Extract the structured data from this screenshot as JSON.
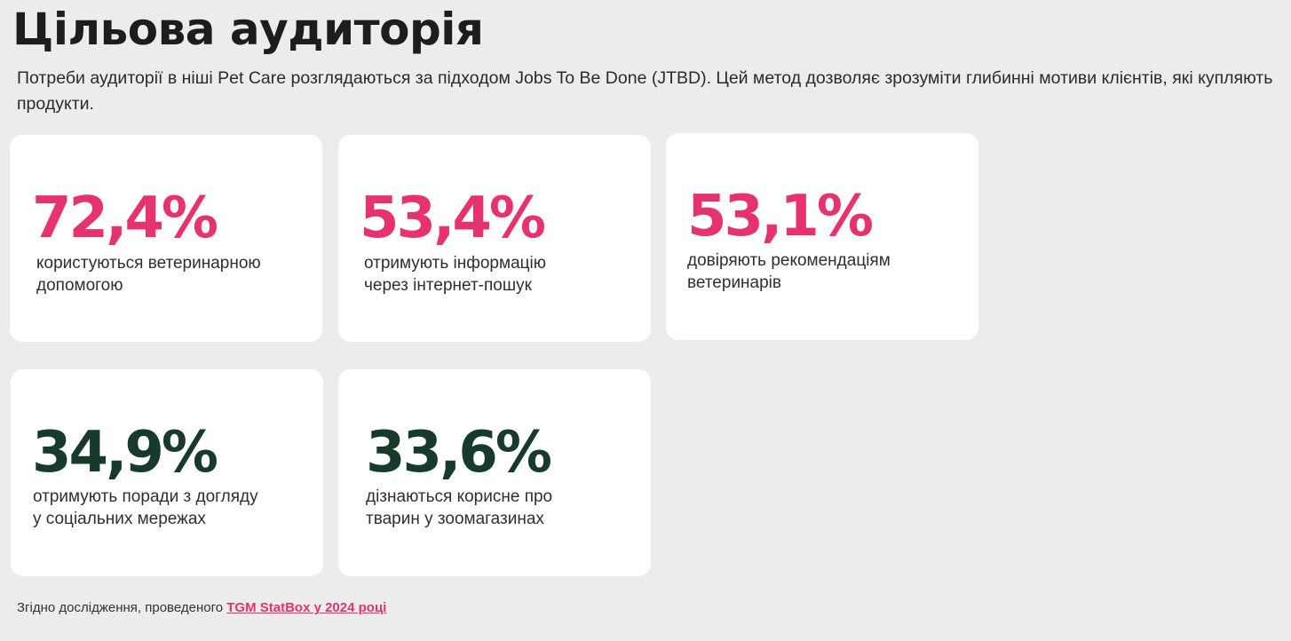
{
  "header": {
    "title": "Цільова аудиторія",
    "intro": "Потреби аудиторії в ніші Pet Care розглядаються за підходом Jobs To Be Done (JTBD). Цей метод дозволяє зрозуміти глибинні мотиви клієнтів, які купляють продукти."
  },
  "stats": [
    {
      "value": "72,4%",
      "line1": "користуються ветеринарною",
      "line2": "допомогою"
    },
    {
      "value": "53,4%",
      "line1": "отримують інформацію",
      "line2": "через інтернет-пошук"
    },
    {
      "value": "53,1%",
      "line1": "довіряють рекомендаціям",
      "line2": "ветеринарів"
    },
    {
      "value": "34,9%",
      "line1": "отримують поради з догляду",
      "line2": "у соціальних мережах"
    },
    {
      "value": "33,6%",
      "line1": "дізнаються корисне про",
      "line2": "тварин у зоомагазинах"
    }
  ],
  "colors": {
    "accent_pink": "#e6336f",
    "accent_green": "#173a2b",
    "background": "#ececec",
    "card": "#ffffff"
  },
  "footer": {
    "prefix": "Згідно дослідження, проведеного ",
    "source_link": "TGM StatBox у 2024 році"
  }
}
